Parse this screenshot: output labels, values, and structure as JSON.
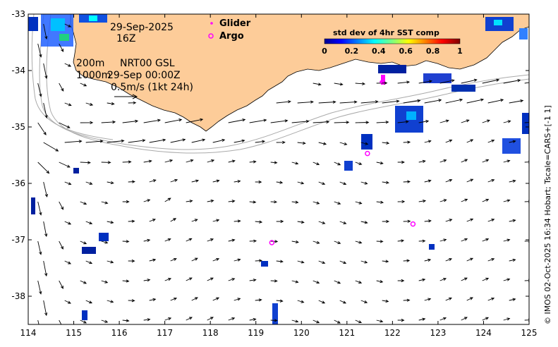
{
  "map": {
    "date": "29-Sep-2025",
    "hour": "16Z",
    "contour_200": "200m",
    "contour_1000": "1000m",
    "current_source": "NRT00 GSL",
    "current_time": "29-Sep 00:00Z",
    "scale_arrow_label": "0.5m/s (1kt 24h)",
    "legend": {
      "glider": "Glider",
      "argo": "Argo"
    },
    "colorbar": {
      "title": "std dev of 4hr SST comp",
      "ticks": [
        "0",
        "0.2",
        "0.4",
        "0.6",
        "0.8",
        "1"
      ]
    },
    "credit": "© IMOS 02-Oct-2025 16:34 Hobart; Tscale=CARS+[-1 1]",
    "x_ticks": [
      "114",
      "115",
      "116",
      "117",
      "118",
      "119",
      "120",
      "121",
      "122",
      "123",
      "124",
      "125"
    ],
    "y_ticks": [
      "-33",
      "-34",
      "-35",
      "-36",
      "-37",
      "-38"
    ],
    "colors": {
      "land": "#fdcc99",
      "glider": "#ff00ff",
      "argo": "#ff00ff",
      "ocean": "#ffffff"
    },
    "argo_floats": [
      {
        "lon": 121.45,
        "lat": -35.47
      },
      {
        "lon": 119.35,
        "lat": -37.05
      },
      {
        "lon": 122.45,
        "lat": -36.72
      }
    ],
    "glider_tracks": [
      {
        "lon": 121.75,
        "lat": -34.2
      }
    ]
  }
}
